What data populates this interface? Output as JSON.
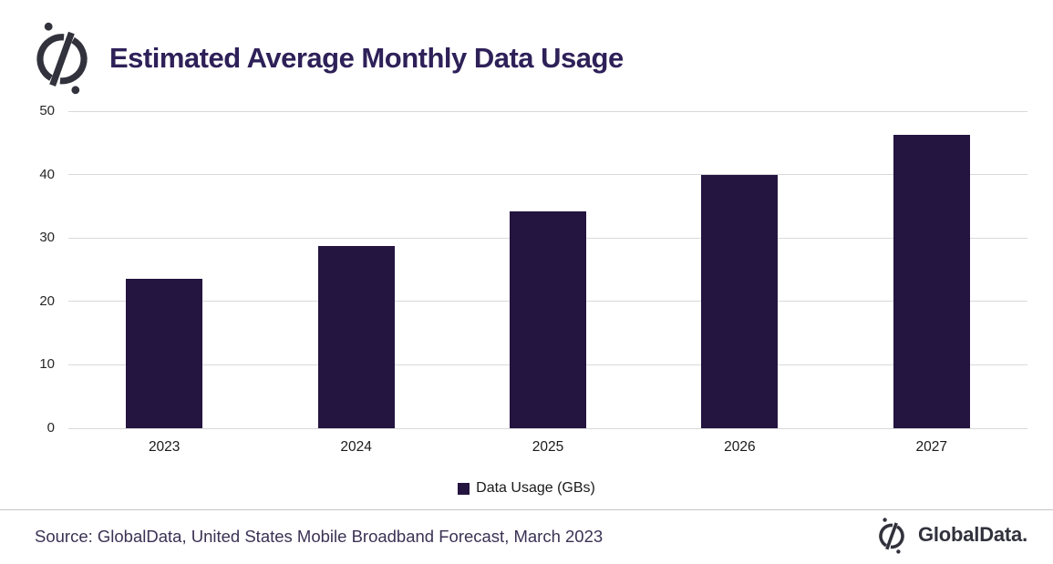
{
  "header": {
    "title": "Estimated Average Monthly Data Usage"
  },
  "chart_data": {
    "type": "bar",
    "categories": [
      "2023",
      "2024",
      "2025",
      "2026",
      "2027"
    ],
    "values": [
      23.6,
      28.8,
      34.2,
      40.0,
      46.2
    ],
    "title": "Estimated Average Monthly Data Usage",
    "xlabel": "",
    "ylabel": "",
    "ylim": [
      0,
      50
    ],
    "yticks": [
      0,
      10,
      20,
      30,
      40,
      50
    ],
    "grid": true,
    "legend": [
      "Data Usage (GBs)"
    ],
    "legend_position": "bottom",
    "bar_color": "#241440"
  },
  "legend": {
    "label": "Data Usage (GBs)"
  },
  "footer": {
    "source": "Source: GlobalData, United States Mobile Broadband Forecast, March 2023",
    "brand": "GlobalData."
  },
  "icons": {
    "logo": "globaldata-circle-slash-mark"
  },
  "colors": {
    "bar": "#241440",
    "title": "#2e2058",
    "grid": "#d9d9d9",
    "axis_text": "#262626",
    "source_text": "#3b3254",
    "logo": "#32323d",
    "divider": "#c6c6c6"
  }
}
